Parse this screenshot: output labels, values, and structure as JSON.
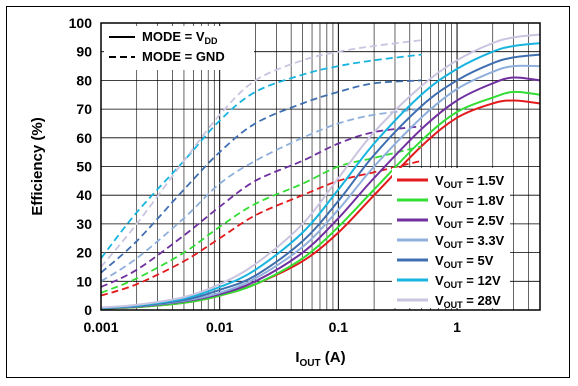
{
  "chart_data": {
    "type": "line",
    "xlabel_main": "I",
    "xlabel_sub": "OUT",
    "xlabel_unit": " (A)",
    "ylabel": "Efficiency (%)",
    "xscale": "log",
    "xlim": [
      0.001,
      5
    ],
    "ylim": [
      0,
      100
    ],
    "grid": true,
    "x_tick_labels": [
      "0.001",
      "0.01",
      "0.1",
      "1"
    ],
    "y_tick_labels": [
      "0",
      "10",
      "20",
      "30",
      "40",
      "50",
      "60",
      "70",
      "80",
      "90",
      "100"
    ],
    "mode_legend": [
      {
        "style": "solid",
        "main": "MODE = V",
        "sub": "DD"
      },
      {
        "style": "dashed",
        "main": "MODE = GND",
        "sub": ""
      }
    ],
    "legend_position": "bottom-right",
    "x": [
      0.001,
      0.002,
      0.005,
      0.01,
      0.02,
      0.05,
      0.1,
      0.2,
      0.5,
      1,
      2,
      3,
      5
    ],
    "series": [
      {
        "name_main": "V",
        "name_sub": "OUT",
        "name_val": " = 1.5V",
        "color": "#e31a1c",
        "solid": [
          0.5,
          1,
          2.5,
          5,
          9,
          17,
          27,
          40,
          57,
          67,
          72,
          73,
          72
        ],
        "dashed": [
          5,
          9,
          17,
          25,
          33,
          40,
          45,
          48,
          52
        ]
      },
      {
        "name_main": "V",
        "name_sub": "OUT",
        "name_val": " = 1.8V",
        "color": "#33dd33",
        "solid": [
          0.5,
          1,
          2.5,
          5,
          9,
          18,
          29,
          42,
          59,
          69,
          74,
          76,
          75
        ],
        "dashed": [
          6,
          11,
          20,
          29,
          37,
          44,
          50,
          53,
          57
        ]
      },
      {
        "name_main": "V",
        "name_sub": "OUT",
        "name_val": " = 2.5V",
        "color": "#7030a0",
        "solid": [
          0.6,
          1.2,
          3,
          5.5,
          10,
          20,
          32,
          46,
          63,
          73,
          79,
          81,
          80
        ],
        "dashed": [
          8,
          14,
          26,
          36,
          45,
          52,
          58,
          62,
          64
        ]
      },
      {
        "name_main": "V",
        "name_sub": "OUT",
        "name_val": " = 3.3V",
        "color": "#8fb0dc",
        "solid": [
          0.6,
          1.3,
          3.2,
          6,
          11,
          22,
          35,
          50,
          67,
          77,
          83,
          85,
          85
        ],
        "dashed": [
          10,
          18,
          32,
          44,
          52,
          60,
          65,
          68,
          70
        ]
      },
      {
        "name_main": "V",
        "name_sub": "OUT",
        "name_val": " = 5V",
        "color": "#3f6fb0",
        "solid": [
          0.7,
          1.4,
          3.5,
          7,
          12,
          24,
          38,
          54,
          71,
          80,
          86,
          88,
          89
        ],
        "dashed": [
          13,
          24,
          42,
          55,
          65,
          72,
          76,
          79,
          80
        ]
      },
      {
        "name_main": "V",
        "name_sub": "OUT",
        "name_val": " = 12V",
        "color": "#18b4e0",
        "solid": [
          0.8,
          1.6,
          4,
          8,
          14,
          27,
          42,
          58,
          75,
          84,
          90,
          92,
          93
        ],
        "dashed": [
          18,
          34,
          52,
          66,
          76,
          82,
          85,
          87,
          89
        ]
      },
      {
        "name_main": "V",
        "name_sub": "OUT",
        "name_val": " = 28V",
        "color": "#cbc4e0",
        "solid": [
          0.9,
          1.8,
          4.5,
          9,
          16,
          30,
          46,
          62,
          78,
          87,
          93,
          95,
          96
        ],
        "dashed": [
          15,
          30,
          52,
          68,
          80,
          87,
          90,
          92,
          94
        ]
      }
    ]
  }
}
